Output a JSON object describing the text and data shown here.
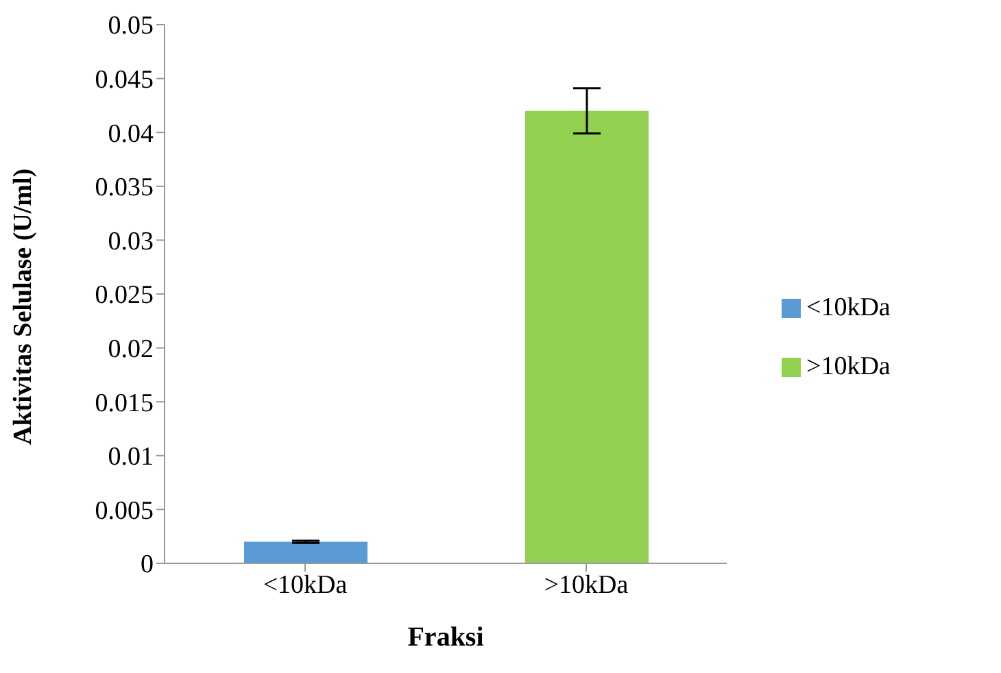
{
  "chart_data": {
    "type": "bar",
    "xlabel": "Fraksi",
    "ylabel": "Aktivitas Selulase (U/ml)",
    "categories": [
      "<10kDa",
      ">10kDa"
    ],
    "series": [
      {
        "name": "<10kDa",
        "color": "#5b9bd5",
        "values": [
          0.002,
          null
        ],
        "errors": [
          0.0001,
          null
        ]
      },
      {
        "name": ">10kDa",
        "color": "#92d050",
        "values": [
          null,
          0.042
        ],
        "errors": [
          null,
          0.0021
        ]
      }
    ],
    "ylim": [
      0,
      0.05
    ],
    "yticks": [
      0,
      0.005,
      0.01,
      0.015,
      0.02,
      0.025,
      0.03,
      0.035,
      0.04,
      0.045,
      0.05
    ],
    "grid": false,
    "legend": "right"
  }
}
